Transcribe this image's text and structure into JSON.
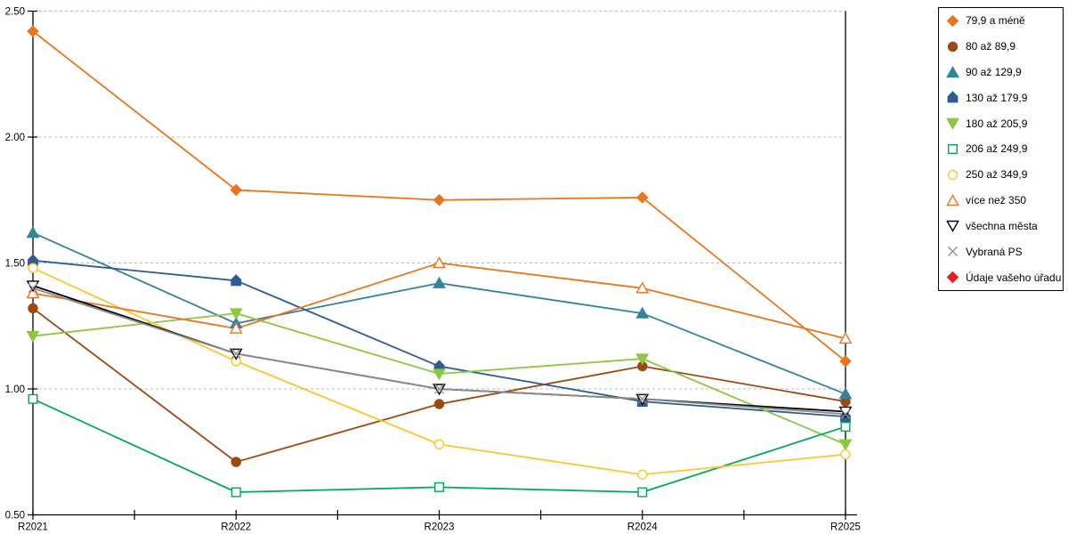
{
  "chart_data": {
    "type": "line",
    "title": "",
    "xlabel": "",
    "ylabel": "",
    "x_categories": [
      "R2021",
      "R2022",
      "R2023",
      "R2024",
      "R2025"
    ],
    "ylim": [
      0.5,
      2.5
    ],
    "y_tick_labels": [
      "0.50",
      "1.00",
      "1.50",
      "2.00",
      "2.50"
    ],
    "y_tick_values": [
      0.5,
      1.0,
      1.5,
      2.0,
      2.5
    ],
    "grid": "horizontal-dashed",
    "legend_position": "right-box",
    "colors": {
      "grid": "#b8b8b8",
      "axis": "#000000",
      "background": "#ffffff"
    },
    "series": [
      {
        "name": "79,9 a méně",
        "color": "#e8761f",
        "marker": "diamond",
        "filled": true,
        "values": [
          2.42,
          1.79,
          1.75,
          1.76,
          1.11
        ]
      },
      {
        "name": "80 až 89,9",
        "color": "#9e480e",
        "marker": "circle",
        "filled": true,
        "values": [
          1.32,
          0.71,
          0.94,
          1.09,
          0.95
        ]
      },
      {
        "name": "90 až 129,9",
        "color": "#31859b",
        "marker": "triangle-up",
        "filled": true,
        "values": [
          1.62,
          1.26,
          1.42,
          1.3,
          0.98
        ]
      },
      {
        "name": "130 až 179,9",
        "color": "#2e5b94",
        "marker": "pentagon",
        "filled": true,
        "values": [
          1.51,
          1.43,
          1.09,
          0.95,
          0.89
        ]
      },
      {
        "name": "180 až 205,9",
        "color": "#8dc63f",
        "marker": "triangle-down",
        "filled": true,
        "values": [
          1.21,
          1.3,
          1.06,
          1.12,
          0.78
        ]
      },
      {
        "name": "206 až 249,9",
        "color": "#00a859",
        "marker": "square",
        "filled": false,
        "values": [
          0.96,
          0.59,
          0.61,
          0.59,
          0.85
        ]
      },
      {
        "name": "250 až 349,9",
        "color": "#fec62e",
        "marker": "circle",
        "filled": false,
        "values": [
          1.48,
          1.11,
          0.78,
          0.66,
          0.74
        ]
      },
      {
        "name": "více než 350",
        "color": "#e8761f",
        "marker": "triangle-up",
        "filled": false,
        "values": [
          1.38,
          1.24,
          1.5,
          1.4,
          1.2
        ]
      },
      {
        "name": "všechna města",
        "color": "#000000",
        "marker": "triangle-down",
        "filled": false,
        "values": [
          1.41,
          1.14,
          1.0,
          0.96,
          0.91
        ]
      },
      {
        "name": "Vybraná PS",
        "color": "#8c8c8c",
        "marker": "x",
        "filled": false,
        "values": [
          1.4,
          1.14,
          1.0,
          0.96,
          0.9
        ]
      },
      {
        "name": "Údaje vašeho úřadu",
        "color": "#ed1c24",
        "marker": "diamond",
        "filled": true,
        "values": []
      }
    ]
  }
}
